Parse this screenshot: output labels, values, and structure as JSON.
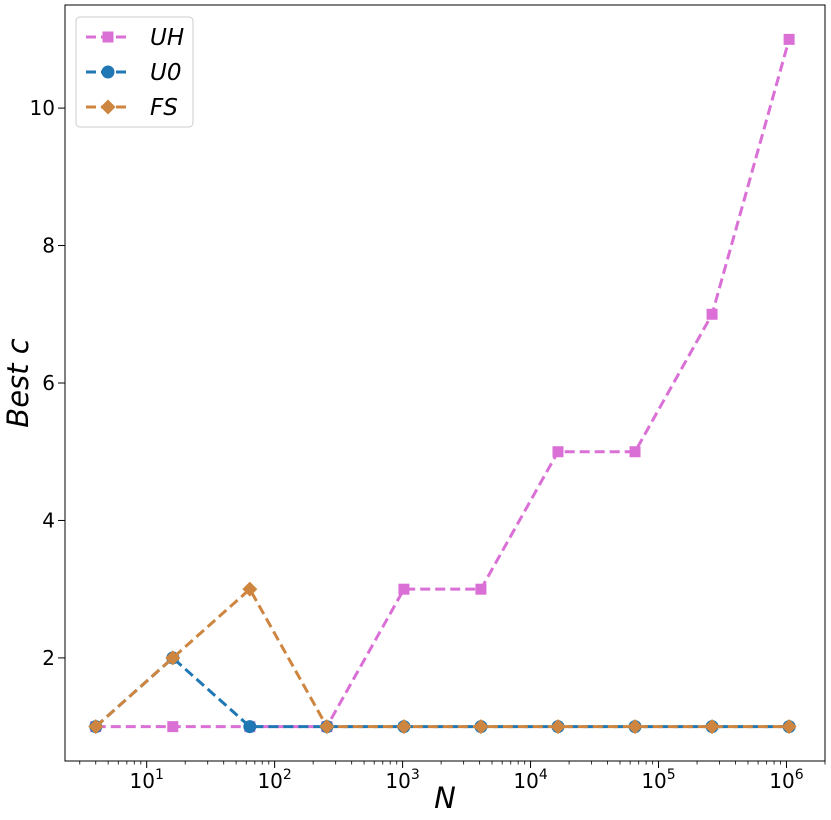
{
  "chart_data": {
    "type": "line",
    "x_scale": "log",
    "x": [
      4,
      16,
      64,
      256,
      1024,
      4096,
      16384,
      65536,
      262144,
      1048576
    ],
    "xlim": [
      2.3,
      2000000
    ],
    "ylim": [
      0.5,
      11.5
    ],
    "xlabel": "N",
    "ylabel": "Best c",
    "legend_position": "top-left",
    "grid": false,
    "x_ticks": [
      {
        "value": 10,
        "base": "10",
        "exp": "1"
      },
      {
        "value": 100,
        "base": "10",
        "exp": "2"
      },
      {
        "value": 1000,
        "base": "10",
        "exp": "3"
      },
      {
        "value": 10000,
        "base": "10",
        "exp": "4"
      },
      {
        "value": 100000,
        "base": "10",
        "exp": "5"
      },
      {
        "value": 1000000,
        "base": "10",
        "exp": "6"
      }
    ],
    "y_ticks": [
      {
        "value": 2,
        "label": "2"
      },
      {
        "value": 4,
        "label": "4"
      },
      {
        "value": 6,
        "label": "6"
      },
      {
        "value": 8,
        "label": "8"
      },
      {
        "value": 10,
        "label": "10"
      }
    ],
    "series": [
      {
        "name": "UH",
        "color": "#da70d6",
        "marker": "square",
        "values": [
          1,
          1,
          1,
          1,
          3,
          3,
          5,
          5,
          7,
          11
        ]
      },
      {
        "name": "U0",
        "color": "#1f77b4",
        "marker": "circle",
        "values": [
          1,
          2,
          1,
          1,
          1,
          1,
          1,
          1,
          1,
          1
        ]
      },
      {
        "name": "FS",
        "color": "#cd853f",
        "marker": "diamond",
        "values": [
          1,
          2,
          3,
          1,
          1,
          1,
          1,
          1,
          1,
          1
        ]
      }
    ]
  }
}
